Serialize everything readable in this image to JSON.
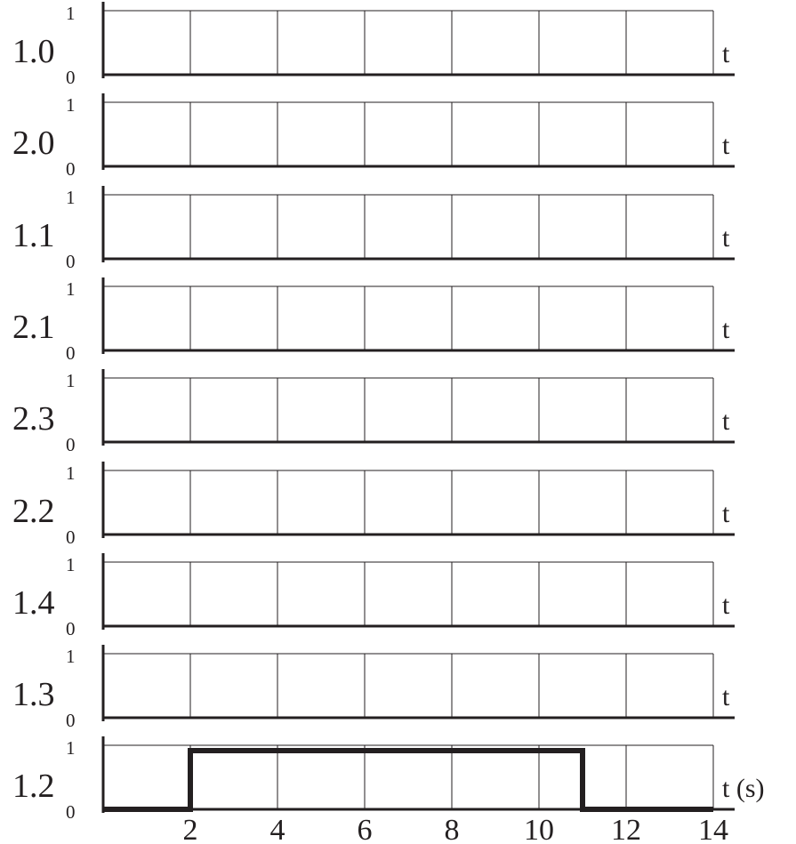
{
  "chart_data": {
    "type": "line",
    "x_range": [
      0,
      14
    ],
    "x_grid_step": 2,
    "y_levels": [
      "0",
      "1"
    ],
    "grid": true,
    "rows": [
      {
        "label": "1.0",
        "axis_label": "t",
        "signal": []
      },
      {
        "label": "2.0",
        "axis_label": "t",
        "signal": []
      },
      {
        "label": "1.1",
        "axis_label": "t",
        "signal": []
      },
      {
        "label": "2.1",
        "axis_label": "t",
        "signal": []
      },
      {
        "label": "2.3",
        "axis_label": "t",
        "signal": []
      },
      {
        "label": "2.2",
        "axis_label": "t",
        "signal": []
      },
      {
        "label": "1.4",
        "axis_label": "t",
        "signal": []
      },
      {
        "label": "1.3",
        "axis_label": "t",
        "signal": []
      },
      {
        "label": "1.2",
        "axis_label": "t (s)",
        "signal": [
          [
            0,
            0
          ],
          [
            2,
            0
          ],
          [
            2,
            1
          ],
          [
            11,
            1
          ],
          [
            11,
            0
          ],
          [
            14,
            0
          ]
        ]
      }
    ],
    "x_tick_labels": [
      "2",
      "4",
      "6",
      "8",
      "10",
      "12",
      "14"
    ]
  }
}
